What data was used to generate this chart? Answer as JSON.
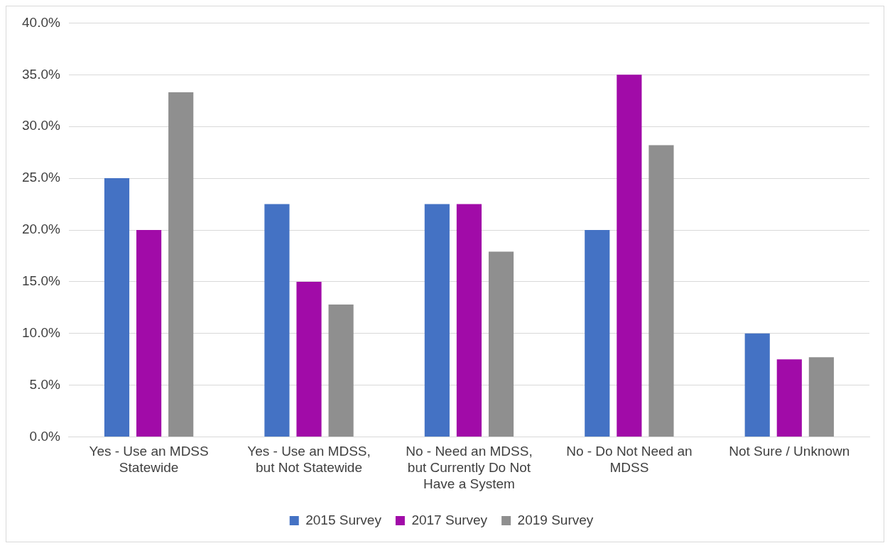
{
  "chart_data": {
    "type": "bar",
    "categories": [
      "Yes - Use an MDSS Statewide",
      "Yes - Use an MDSS, but Not Statewide",
      "No - Need an MDSS, but Currently Do Not Have a System",
      "No - Do Not Need an MDSS",
      "Not Sure / Unknown"
    ],
    "series": [
      {
        "name": "2015 Survey",
        "color": "#4472c4",
        "values": [
          25,
          22.5,
          22.5,
          20,
          10
        ]
      },
      {
        "name": "2017 Survey",
        "color": "#a10ba8",
        "values": [
          20,
          15,
          22.5,
          35,
          7.5
        ]
      },
      {
        "name": "2019 Survey",
        "color": "#8f8f8f",
        "values": [
          33.3,
          12.8,
          17.9,
          28.2,
          7.7
        ]
      }
    ],
    "ylim": [
      0,
      40
    ],
    "yticks": [
      {
        "value": 0,
        "label": "0.0%"
      },
      {
        "value": 5,
        "label": "5.0%"
      },
      {
        "value": 10,
        "label": "10.0%"
      },
      {
        "value": 15,
        "label": "15.0%"
      },
      {
        "value": 20,
        "label": "20.0%"
      },
      {
        "value": 25,
        "label": "25.0%"
      },
      {
        "value": 30,
        "label": "30.0%"
      },
      {
        "value": 35,
        "label": "35.0%"
      },
      {
        "value": 40,
        "label": "40.0%"
      }
    ],
    "grid": "y",
    "legend": "bottom"
  }
}
